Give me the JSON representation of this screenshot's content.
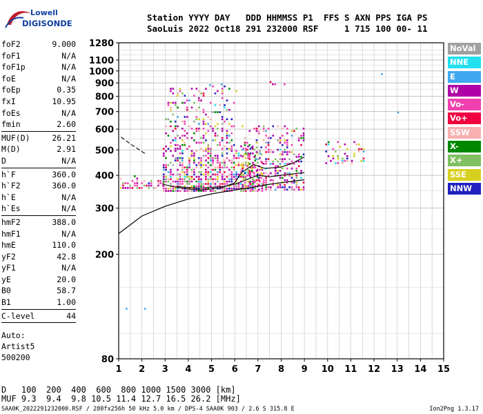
{
  "logo": {
    "line1": "Lowell",
    "line2": "DIGISONDE"
  },
  "header": {
    "col_station": "Station",
    "val_station": "SaoLuis",
    "col_yyyy": "YYYY",
    "val_yyyy": "2022",
    "col_day": "DAY",
    "val_day": "Oct18",
    "col_ddd": "DDD",
    "val_ddd": "291",
    "col_hhmmss": "HHMMSS",
    "val_hhmmss": "232000",
    "col_p1": "P1",
    "val_p1": "RSF",
    "col_ffs": "FFS",
    "val_ffs": "",
    "col_s": "S",
    "val_s": "1",
    "col_axn": "AXN",
    "val_axn": "715",
    "col_pps": "PPS",
    "val_pps": "100",
    "col_iga": "IGA",
    "val_iga": "00-",
    "col_ps": "PS",
    "val_ps": "11"
  },
  "params": [
    {
      "label": "foF2",
      "value": "9.000"
    },
    {
      "label": "foF1",
      "value": "N/A"
    },
    {
      "label": "foF1p",
      "value": "N/A"
    },
    {
      "label": "foE",
      "value": "N/A"
    },
    {
      "label": "foEp",
      "value": "0.35"
    },
    {
      "label": "fxI",
      "value": "10.95"
    },
    {
      "label": "foEs",
      "value": "N/A"
    },
    {
      "label": "fmin",
      "value": "2.60"
    },
    {
      "sep": true
    },
    {
      "label": "MUF(D)",
      "value": "26.21"
    },
    {
      "label": "M(D)",
      "value": "2.91"
    },
    {
      "label": "D",
      "value": "N/A"
    },
    {
      "sep": true
    },
    {
      "label": "h`F",
      "value": "360.0"
    },
    {
      "label": "h`F2",
      "value": "360.0"
    },
    {
      "label": "h`E",
      "value": "N/A"
    },
    {
      "label": "h`Es",
      "value": "N/A"
    },
    {
      "sep": true
    },
    {
      "label": "hmF2",
      "value": "388.0"
    },
    {
      "label": "hmF1",
      "value": "N/A"
    },
    {
      "label": "hmE",
      "value": "110.0"
    },
    {
      "label": "yF2",
      "value": "42.8"
    },
    {
      "label": "yF1",
      "value": "N/A"
    },
    {
      "label": "yE",
      "value": "20.0"
    },
    {
      "label": "B0",
      "value": "58.7"
    },
    {
      "label": "B1",
      "value": "1.00"
    },
    {
      "sep": true
    },
    {
      "label": "C-level",
      "value": "44"
    },
    {
      "sep": true
    }
  ],
  "auto": {
    "line1": "Auto:",
    "line2": "Artist5",
    "line3": "500200"
  },
  "legend": [
    {
      "label": "NoVal",
      "color": "#a0a0a0"
    },
    {
      "label": "NNE",
      "color": "#22e0f0"
    },
    {
      "label": "E",
      "color": "#40a8f0"
    },
    {
      "label": "W",
      "color": "#b000a8"
    },
    {
      "label": "Vo-",
      "color": "#f040b0"
    },
    {
      "label": "Vo+",
      "color": "#f00040"
    },
    {
      "label": "SSW",
      "color": "#f8b0b0"
    },
    {
      "label": "X-",
      "color": "#008800"
    },
    {
      "label": "X+",
      "color": "#80c060"
    },
    {
      "label": "SSE",
      "color": "#d8d020"
    },
    {
      "label": "NNW",
      "color": "#2020c0"
    }
  ],
  "muf_table": {
    "d_label": "D",
    "d_values": "100  200  400  600  800 1000 1500 3000 [km]",
    "muf_label": "MUF",
    "muf_values": "9.3  9.4  9.8 10.5 11.4 12.7 16.5 26.2 [MHz]"
  },
  "footer": {
    "left": "SAA0K_2022291232000.RSF / 280fx256h 50 kHz 5.0 km / DPS-4 SAA0K 903 / 2.6 S 315.8 E",
    "right": "Ion2Png 1.3.17"
  },
  "chart_data": {
    "type": "scatter",
    "title": "",
    "xlabel": "",
    "ylabel": "",
    "xlim": [
      1,
      15
    ],
    "ylim": [
      80,
      1280
    ],
    "y_scale": "log",
    "grid": true,
    "x_ticks": [
      1,
      2,
      3,
      4,
      5,
      6,
      7,
      8,
      9,
      10,
      11,
      12,
      13,
      14,
      15
    ],
    "y_ticks": [
      80,
      200,
      300,
      400,
      500,
      600,
      700,
      800,
      900,
      1000,
      1100,
      1280
    ],
    "echo_regions": [
      {
        "f": [
          1.05,
          2.9
        ],
        "h": [
          355,
          400
        ],
        "density": 0.55
      },
      {
        "f": [
          2.9,
          7.2
        ],
        "h": [
          350,
          520
        ],
        "density": 0.65
      },
      {
        "f": [
          3.0,
          6.1
        ],
        "h": [
          520,
          880
        ],
        "density": 0.25
      },
      {
        "f": [
          6.3,
          9.0
        ],
        "h": [
          355,
          620
        ],
        "density": 0.4
      },
      {
        "f": [
          7.5,
          8.2
        ],
        "h": [
          890,
          915
        ],
        "density": 0.6
      },
      {
        "f": [
          9.9,
          11.6
        ],
        "h": [
          440,
          540
        ],
        "density": 0.3
      }
    ],
    "ordinary_trace": {
      "f": [
        1.0,
        2.0,
        3.0,
        4.0,
        5.0,
        6.0,
        6.5,
        7.0,
        7.5,
        8.0,
        8.5,
        9.0
      ],
      "h": [
        240,
        280,
        305,
        325,
        340,
        352,
        357,
        363,
        370,
        375,
        380,
        385
      ]
    },
    "trace_upper": {
      "f": [
        2.9,
        3.5,
        4.0,
        4.5,
        5.0,
        5.5,
        6.0,
        6.3,
        6.8,
        7.3,
        8.0,
        8.5,
        9.0
      ],
      "h": [
        370,
        360,
        355,
        352,
        355,
        360,
        375,
        410,
        440,
        425,
        430,
        445,
        470
      ]
    },
    "trace_lower": {
      "f": [
        3.5,
        4.5,
        5.5,
        6.0,
        6.5,
        7.0,
        7.5,
        8.0,
        8.5,
        9.0
      ],
      "h": [
        362,
        358,
        362,
        370,
        385,
        400,
        395,
        400,
        405,
        410
      ]
    },
    "dashed_trace": {
      "f": [
        1.1,
        1.6,
        2.2
      ],
      "h": [
        560,
        520,
        480
      ]
    }
  }
}
